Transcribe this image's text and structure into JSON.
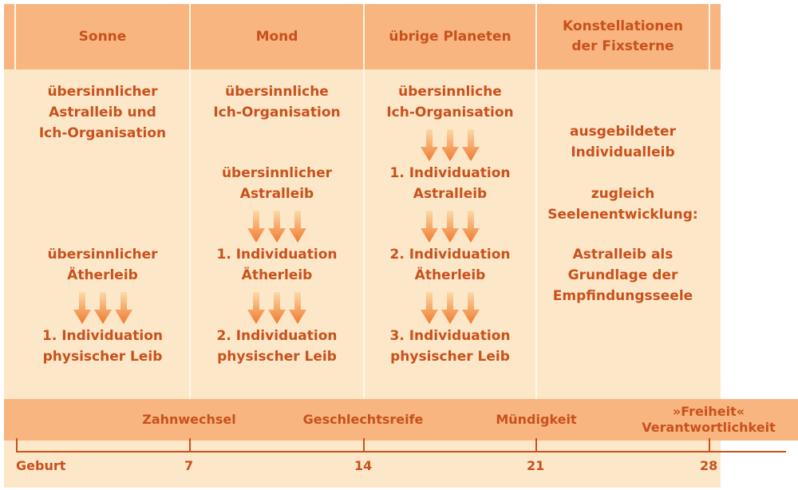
{
  "colors": {
    "background": "#fde7c9",
    "header": "#f9b57f",
    "text": "#c8511c",
    "arrow_top": "#fcd9a6",
    "arrow_bottom": "#f07a2f"
  },
  "columns": [
    {
      "header": "Sonne",
      "items": [
        "übersinnlicher\nAstralleib und\nIch-Organisation",
        "übersinnlicher\nÄtherleib",
        "1. Individuation\nphysischer Leib"
      ]
    },
    {
      "header": "Mond",
      "items": [
        "übersinnliche\nIch-Organisation",
        "übersinnlicher\nAstralleib",
        "1. Individuation\nÄtherleib",
        "2. Individuation\nphysischer Leib"
      ]
    },
    {
      "header": "übrige Planeten",
      "items": [
        "übersinnliche\nIch-Organisation",
        "1. Individuation\nAstralleib",
        "2. Individuation\nÄtherleib",
        "3. Individuation\nphysischer Leib"
      ]
    },
    {
      "header": "Konstellationen\nder Fixsterne",
      "items": [
        "ausgebildeter\nIndividualleib",
        "zugleich\nSeelenentwicklung:",
        "Astralleib als\nGrundlage der\nEmpfindungsseele"
      ]
    }
  ],
  "timeline": {
    "events": [
      "Zahnwechsel",
      "Geschlechtsreife",
      "Mündigkeit",
      "»Freiheit«\nVerantwortlichkeit"
    ],
    "ticks": [
      "Geburt",
      "7",
      "14",
      "21",
      "28"
    ]
  }
}
